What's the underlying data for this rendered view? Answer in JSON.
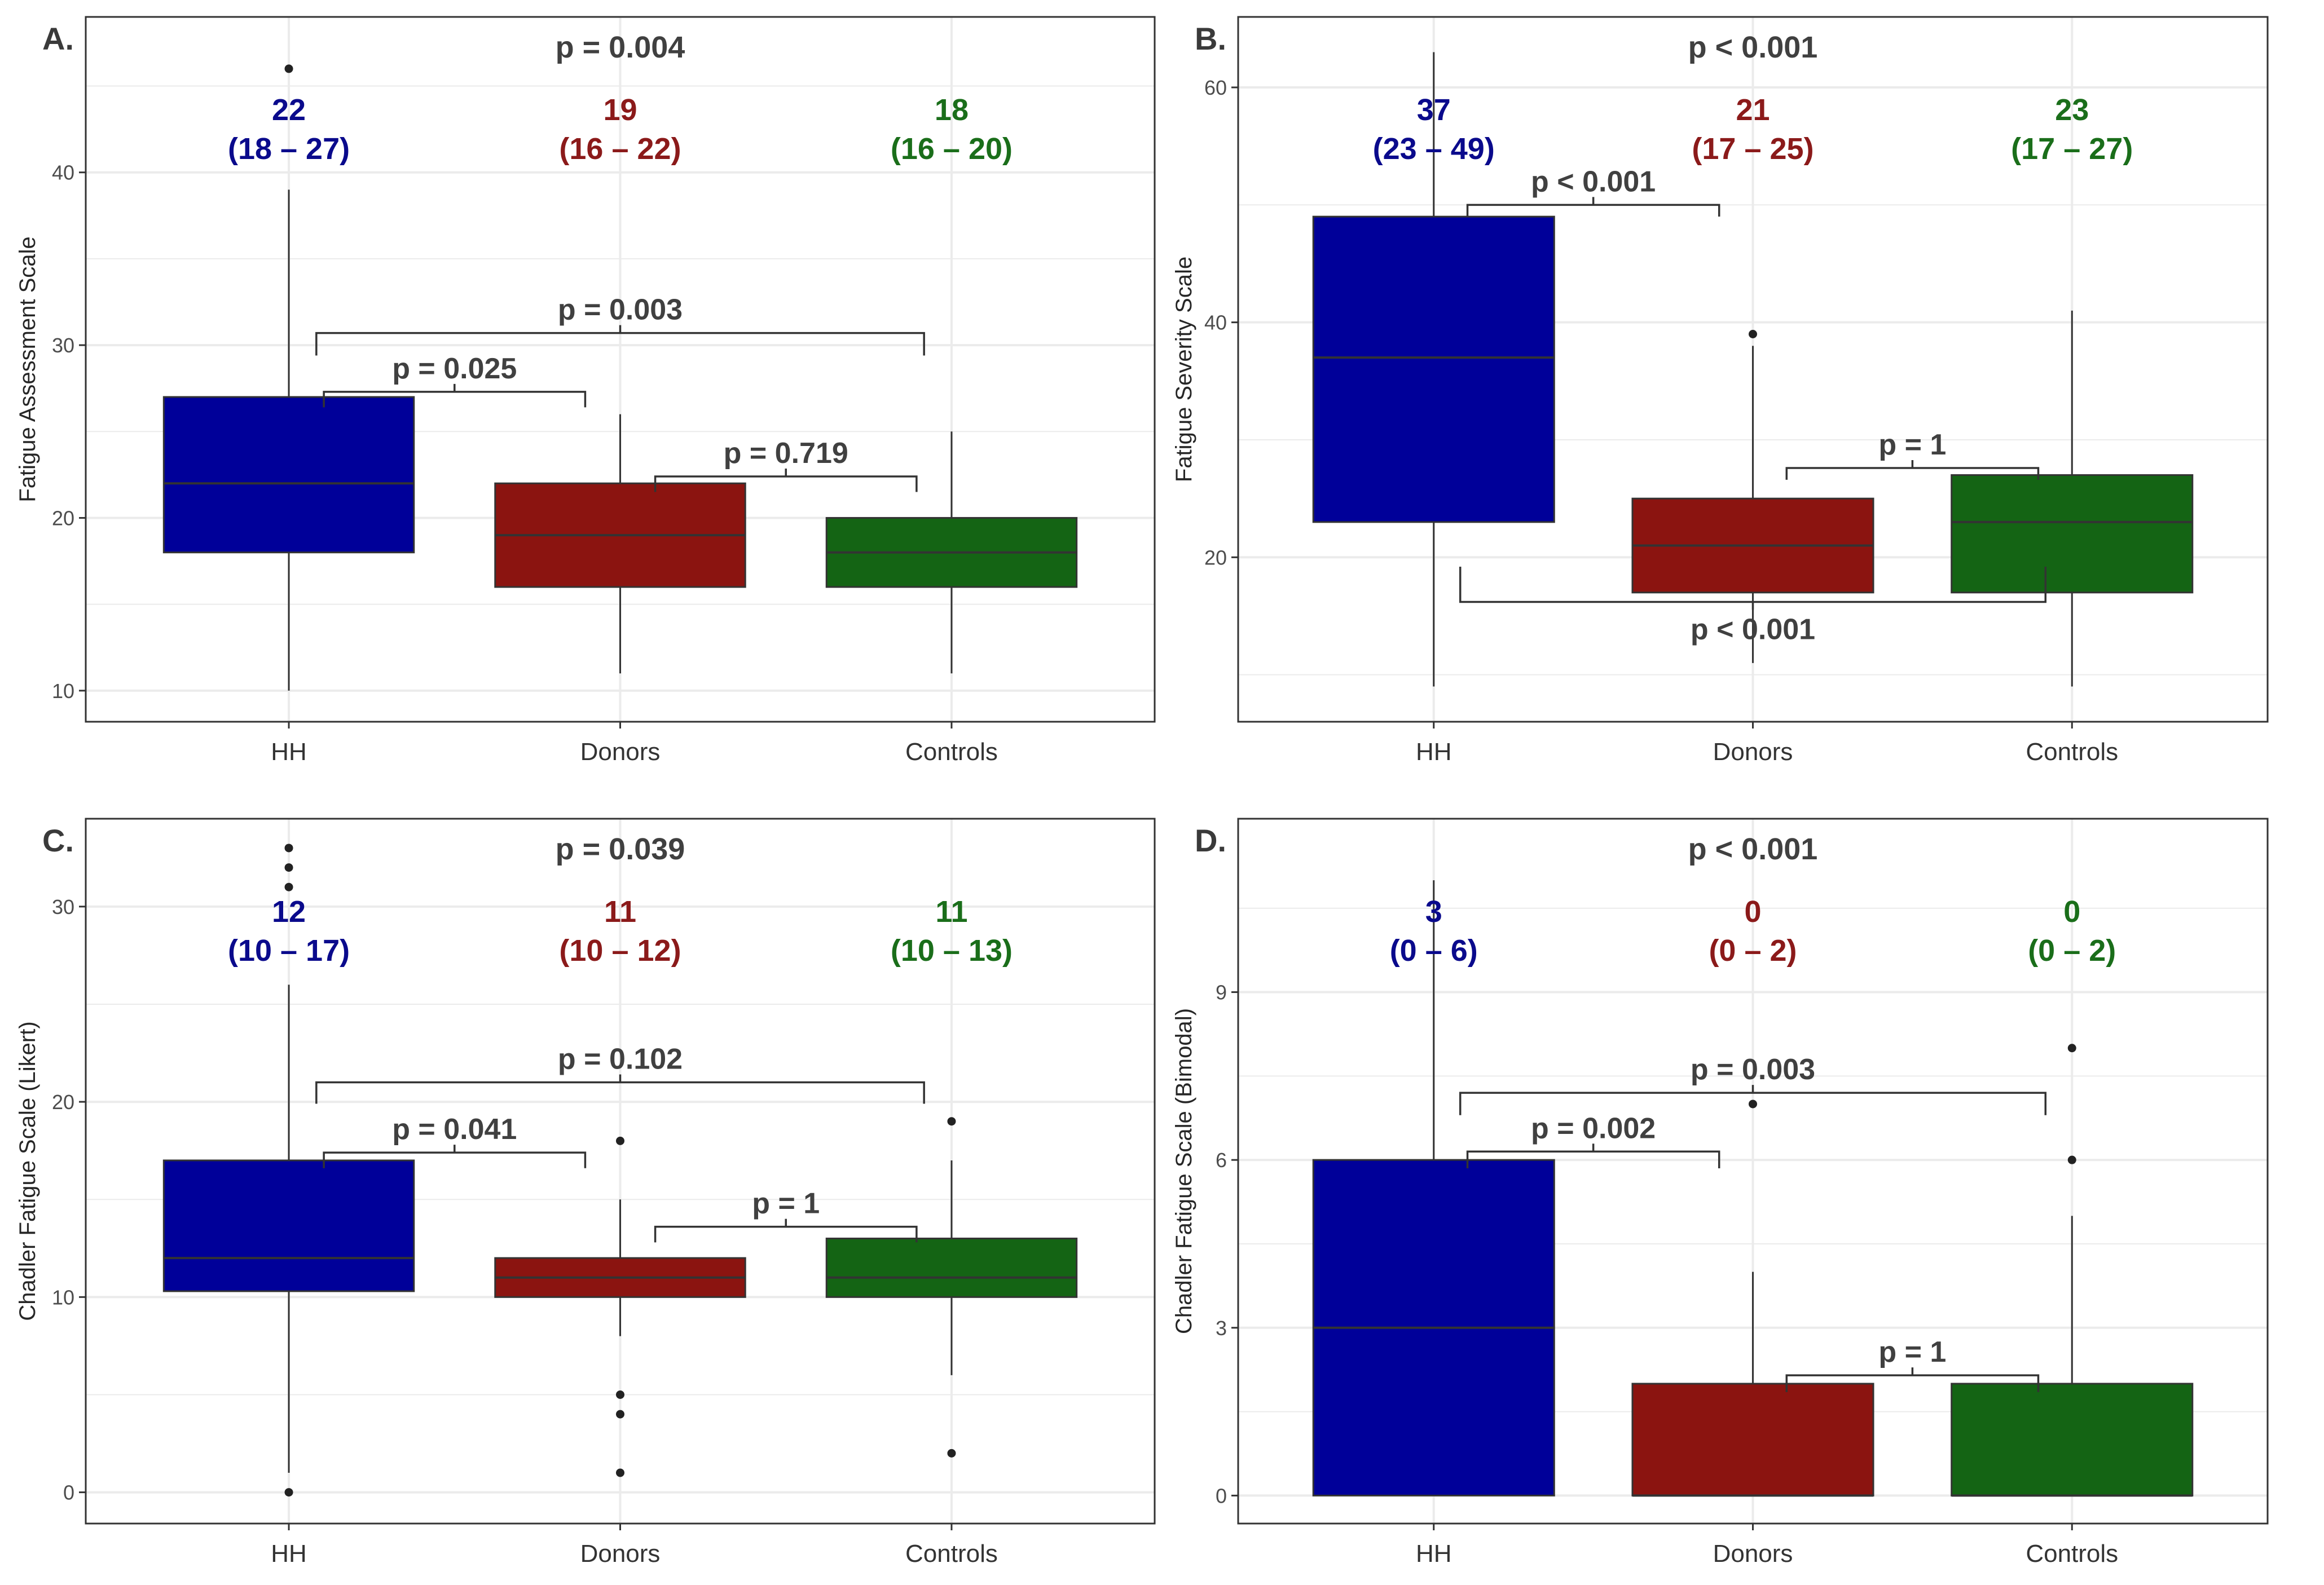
{
  "colors": {
    "HH": "#000099",
    "Donors": "#8B1410",
    "Controls": "#146414",
    "HH_text": "#0A0A8C",
    "Donors_text": "#8B1A1A",
    "Controls_text": "#1A6E1A",
    "grid": "#ebebeb",
    "border": "#333333",
    "median_line": "#333333"
  },
  "chart_data": [
    {
      "panel": "A.",
      "type": "box",
      "ylabel": "Fatigue Assessment Scale",
      "ylim": [
        8.2,
        49
      ],
      "yticks": [
        10,
        20,
        30,
        40
      ],
      "categories": [
        "HH",
        "Donors",
        "Controls"
      ],
      "overall_p": "p = 0.004",
      "summary_labels": [
        {
          "median": "22",
          "iqr": "(18 – 27)"
        },
        {
          "median": "19",
          "iqr": "(16 – 22)"
        },
        {
          "median": "18",
          "iqr": "(16 – 20)"
        }
      ],
      "boxes": [
        {
          "q1": 18,
          "median": 22,
          "q3": 27,
          "whisker_low": 10,
          "whisker_high": 39,
          "outliers": [
            46
          ]
        },
        {
          "q1": 16,
          "median": 19,
          "q3": 22,
          "whisker_low": 11,
          "whisker_high": 26,
          "outliers": []
        },
        {
          "q1": 16,
          "median": 18,
          "q3": 20,
          "whisker_low": 11,
          "whisker_high": 25,
          "outliers": []
        }
      ],
      "comparisons": [
        {
          "from": 0,
          "to": 1,
          "label": "p = 0.025",
          "y": 27.3,
          "tip": 0.9
        },
        {
          "from": 1,
          "to": 2,
          "label": "p = 0.719",
          "y": 22.4,
          "tip": 0.9
        },
        {
          "from": 0,
          "to": 2,
          "label": "p = 0.003",
          "y": 30.7,
          "tip": 1.3
        }
      ]
    },
    {
      "panel": "B.",
      "type": "box",
      "ylabel": "Fatigue Severity Scale",
      "ylim": [
        6,
        66
      ],
      "yticks": [
        20,
        40,
        60
      ],
      "categories": [
        "HH",
        "Donors",
        "Controls"
      ],
      "overall_p": "p < 0.001",
      "summary_labels": [
        {
          "median": "37",
          "iqr": "(23 – 49)"
        },
        {
          "median": "21",
          "iqr": "(17 – 25)"
        },
        {
          "median": "23",
          "iqr": "(17 – 27)"
        }
      ],
      "boxes": [
        {
          "q1": 23,
          "median": 37,
          "q3": 49,
          "whisker_low": 9,
          "whisker_high": 63,
          "outliers": []
        },
        {
          "q1": 17,
          "median": 21,
          "q3": 25,
          "whisker_low": 11,
          "whisker_high": 38,
          "outliers": [
            39
          ]
        },
        {
          "q1": 17,
          "median": 23,
          "q3": 27,
          "whisker_low": 9,
          "whisker_high": 41,
          "outliers": []
        }
      ],
      "comparisons": [
        {
          "from": 0,
          "to": 1,
          "label": "p < 0.001",
          "y": 50,
          "tip": 1.0
        },
        {
          "from": 1,
          "to": 2,
          "label": "p = 1",
          "y": 27.6,
          "tip": 1.0
        },
        {
          "from": 0,
          "to": 2,
          "label": "p < 0.001",
          "y": 16.2,
          "tip": -3.0,
          "label_below": true
        }
      ]
    },
    {
      "panel": "C.",
      "type": "box",
      "ylabel": "Chadler Fatigue Scale (Likert)",
      "ylim": [
        -1.6,
        34.5
      ],
      "yticks": [
        0,
        10,
        20,
        30
      ],
      "categories": [
        "HH",
        "Donors",
        "Controls"
      ],
      "overall_p": "p = 0.039",
      "summary_labels": [
        {
          "median": "12",
          "iqr": "(10 – 17)"
        },
        {
          "median": "11",
          "iqr": "(10 – 12)"
        },
        {
          "median": "11",
          "iqr": "(10 – 13)"
        }
      ],
      "boxes": [
        {
          "q1": 10.3,
          "median": 12,
          "q3": 17,
          "whisker_low": 1,
          "whisker_high": 26,
          "outliers": [
            0,
            31,
            32,
            33
          ]
        },
        {
          "q1": 10,
          "median": 11,
          "q3": 12,
          "whisker_low": 8,
          "whisker_high": 15,
          "outliers": [
            1,
            4,
            5,
            18
          ]
        },
        {
          "q1": 10,
          "median": 11,
          "q3": 13,
          "whisker_low": 6,
          "whisker_high": 17,
          "outliers": [
            2,
            19
          ]
        }
      ],
      "comparisons": [
        {
          "from": 0,
          "to": 1,
          "label": "p = 0.041",
          "y": 17.4,
          "tip": 0.8
        },
        {
          "from": 1,
          "to": 2,
          "label": "p = 1",
          "y": 13.6,
          "tip": 0.8
        },
        {
          "from": 0,
          "to": 2,
          "label": "p = 0.102",
          "y": 21,
          "tip": 1.1
        }
      ]
    },
    {
      "panel": "D.",
      "type": "box",
      "ylabel": "Chadler Fatigue Scale (Bimodal)",
      "ylim": [
        -0.5,
        12.1
      ],
      "yticks": [
        0,
        3,
        6,
        9
      ],
      "categories": [
        "HH",
        "Donors",
        "Controls"
      ],
      "overall_p": "p < 0.001",
      "summary_labels": [
        {
          "median": "3",
          "iqr": "(0 – 6)"
        },
        {
          "median": "0",
          "iqr": "(0 – 2)"
        },
        {
          "median": "0",
          "iqr": "(0 – 2)"
        }
      ],
      "boxes": [
        {
          "q1": 0,
          "median": 3,
          "q3": 6,
          "whisker_low": 0,
          "whisker_high": 11,
          "outliers": []
        },
        {
          "q1": 0,
          "median": 0,
          "q3": 2,
          "whisker_low": 0,
          "whisker_high": 4,
          "outliers": [
            7
          ]
        },
        {
          "q1": 0,
          "median": 0,
          "q3": 2,
          "whisker_low": 0,
          "whisker_high": 5,
          "outliers": [
            6,
            8
          ]
        }
      ],
      "comparisons": [
        {
          "from": 0,
          "to": 1,
          "label": "p = 0.002",
          "y": 6.15,
          "tip": 0.3
        },
        {
          "from": 1,
          "to": 2,
          "label": "p = 1",
          "y": 2.15,
          "tip": 0.3
        },
        {
          "from": 0,
          "to": 2,
          "label": "p = 0.003",
          "y": 7.2,
          "tip": 0.4
        }
      ]
    }
  ]
}
